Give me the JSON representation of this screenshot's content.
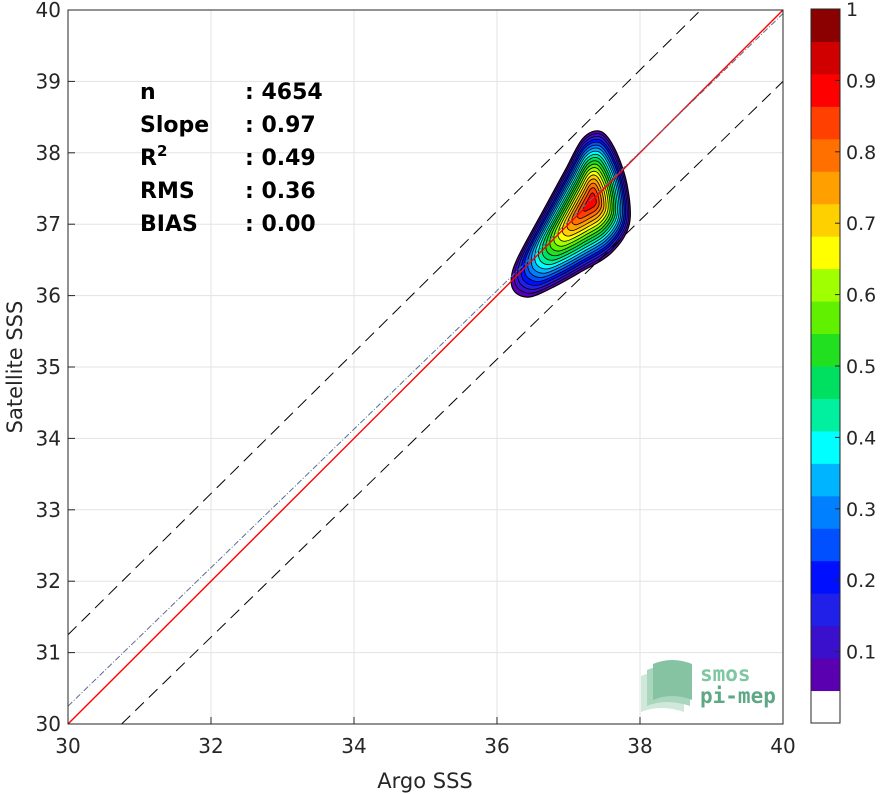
{
  "chart_data": {
    "type": "density_contour_scatter",
    "xlabel": "Argo SSS",
    "ylabel": "Satellite SSS",
    "xlim": [
      30,
      40
    ],
    "ylim": [
      30,
      40
    ],
    "xticks": [
      30,
      32,
      34,
      36,
      38,
      40
    ],
    "yticks": [
      30,
      31,
      32,
      33,
      34,
      35,
      36,
      37,
      38,
      39,
      40
    ],
    "grid": true,
    "stats": [
      {
        "label": "n",
        "sep": ":",
        "value": "4654"
      },
      {
        "label": "Slope",
        "sep": ":",
        "value": "0.97"
      },
      {
        "label": "R",
        "sup": "2",
        "sep": ":",
        "value": "0.49"
      },
      {
        "label": "RMS",
        "sep": ":",
        "value": "0.36"
      },
      {
        "label": "BIAS",
        "sep": ":",
        "value": "0.00"
      }
    ],
    "lines": [
      {
        "kind": "identity",
        "color": "#ff0000",
        "style": "solid",
        "points": [
          [
            30,
            30
          ],
          [
            40,
            40
          ]
        ]
      },
      {
        "kind": "fit",
        "color": "#5a6e8c",
        "style": "dash-dot",
        "points": [
          [
            30,
            30.25
          ],
          [
            40,
            39.95
          ]
        ]
      },
      {
        "kind": "upper-bound",
        "color": "#000000",
        "style": "dashed",
        "points": [
          [
            30,
            31.25
          ],
          [
            38.85,
            40
          ]
        ]
      },
      {
        "kind": "lower-bound",
        "color": "#000000",
        "style": "dashed",
        "points": [
          [
            30.75,
            30
          ],
          [
            40,
            39.0
          ]
        ]
      }
    ],
    "density": {
      "peak": [
        37.33,
        37.33
      ],
      "levels": [
        0.05,
        0.1,
        0.15,
        0.2,
        0.25,
        0.3,
        0.35,
        0.4,
        0.45,
        0.5,
        0.55,
        0.6,
        0.65,
        0.7,
        0.75,
        0.8,
        0.85,
        0.9,
        0.95
      ],
      "outer_contour": [
        [
          36.25,
          36.05
        ],
        [
          36.45,
          35.98
        ],
        [
          36.75,
          36.1
        ],
        [
          37.15,
          36.32
        ],
        [
          37.6,
          36.6
        ],
        [
          37.85,
          37.0
        ],
        [
          37.82,
          37.55
        ],
        [
          37.65,
          38.05
        ],
        [
          37.45,
          38.3
        ],
        [
          37.2,
          38.2
        ],
        [
          36.95,
          37.75
        ],
        [
          36.65,
          37.2
        ],
        [
          36.3,
          36.55
        ],
        [
          36.2,
          36.25
        ]
      ]
    },
    "colorbar": {
      "range": [
        0,
        1
      ],
      "ticks": [
        0.1,
        0.2,
        0.3,
        0.4,
        0.5,
        0.6,
        0.7,
        0.8,
        0.9,
        1
      ],
      "tick_labels": [
        "0.1",
        "0.2",
        "0.3",
        "0.4",
        "0.5",
        "0.6",
        "0.7",
        "0.8",
        "0.9",
        "1"
      ],
      "colors": [
        "#ffffff",
        "#5a00b0",
        "#3a10cc",
        "#2020e8",
        "#0010ff",
        "#0050ff",
        "#0080ff",
        "#00b4ff",
        "#00ffff",
        "#00f0a0",
        "#00e060",
        "#20e020",
        "#60f000",
        "#a0ff00",
        "#ffff00",
        "#ffd000",
        "#ffa000",
        "#ff7000",
        "#ff4000",
        "#ff0000",
        "#d00000",
        "#8b0000"
      ]
    }
  },
  "logo": {
    "line1": "smos",
    "line2": "pi-mep"
  }
}
